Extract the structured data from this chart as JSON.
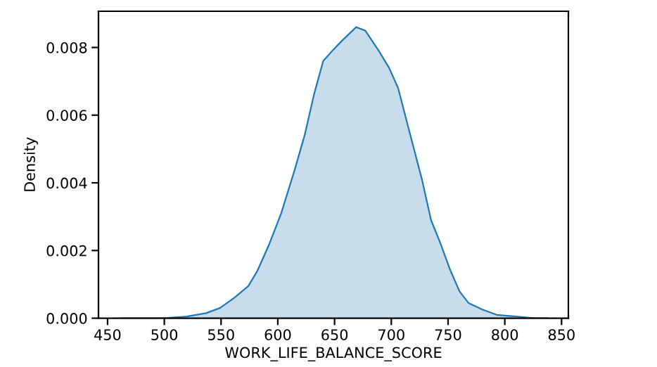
{
  "chart_data": {
    "type": "area",
    "xlabel": "WORK_LIFE_BALANCE_SCORE",
    "ylabel": "Density",
    "x": [
      461.6,
      479,
      499.6,
      520,
      536.8,
      549,
      561.6,
      574,
      582,
      592.6,
      603,
      615,
      623.6,
      631.8,
      640,
      648,
      656.6,
      669,
      677,
      689,
      698,
      706,
      714.5,
      727,
      735,
      743.4,
      751.7,
      760,
      768,
      780.6,
      793,
      809.5,
      826,
      837.6
    ],
    "series": [
      {
        "color": "#1f77b4",
        "values": [
          0,
          0,
          0,
          5e-05,
          0.00015,
          0.0003,
          0.0006,
          0.00095,
          0.0014,
          0.0022,
          0.0031,
          0.0044,
          0.0054,
          0.0066,
          0.0076,
          0.0079,
          0.0082,
          0.0086,
          0.0085,
          0.0079,
          0.0074,
          0.0068,
          0.0057,
          0.0041,
          0.0029,
          0.0022,
          0.00144,
          0.0008,
          0.00045,
          0.00025,
          0.0001,
          5e-05,
          0,
          0
        ]
      }
    ],
    "xlim": [
      442,
      856
    ],
    "ylim": [
      0,
      0.00907
    ],
    "xticks": [
      450,
      500,
      550,
      600,
      650,
      700,
      750,
      800,
      850
    ],
    "yticks": [
      {
        "value": 0,
        "label": "0.000"
      },
      {
        "value": 0.002,
        "label": "0.002"
      },
      {
        "value": 0.004,
        "label": "0.004"
      },
      {
        "value": 0.006,
        "label": "0.006"
      },
      {
        "value": 0.008,
        "label": "0.008"
      }
    ],
    "grid": false
  }
}
